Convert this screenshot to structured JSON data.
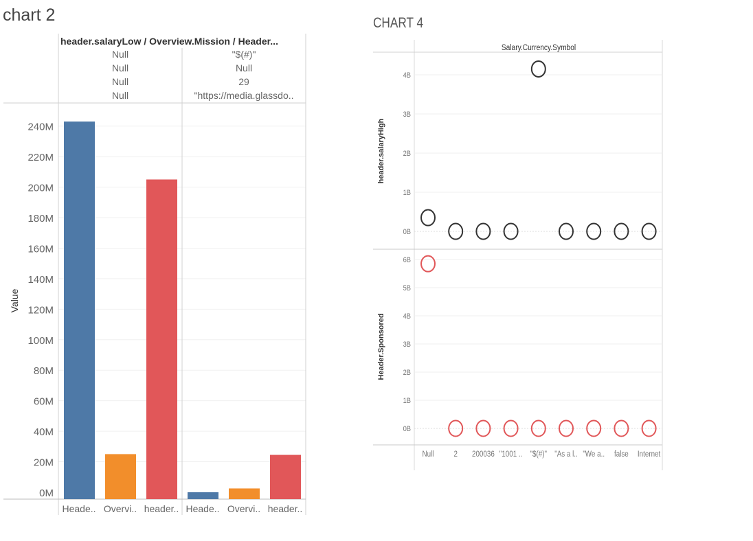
{
  "chart2": {
    "title": "chart 2",
    "header_title": "header.salaryLow / Overview.Mission / Header...",
    "panes": [
      {
        "rows": [
          "Null",
          "Null",
          "Null",
          "Null"
        ]
      },
      {
        "rows": [
          "\"$(#)\"",
          "Null",
          "29",
          "\"https://media.glassdo.."
        ]
      }
    ],
    "ylabel": "Value"
  },
  "chart4": {
    "title": "CHART 4",
    "top_header": "Salary.Currency.Symbol"
  },
  "chart_data": [
    {
      "type": "bar",
      "title": "chart 2",
      "ylabel": "Value",
      "ylim": [
        0,
        250000000
      ],
      "yticks": [
        "0M",
        "20M",
        "40M",
        "60M",
        "80M",
        "100M",
        "120M",
        "140M",
        "160M",
        "180M",
        "200M",
        "220M",
        "240M"
      ],
      "panes": [
        {
          "header": [
            "Null",
            "Null",
            "Null",
            "Null"
          ],
          "categories": [
            "Heade..",
            "Overvi..",
            "header.."
          ],
          "values": [
            243000000,
            25000000,
            205000000
          ],
          "colors": [
            "#4e79a7",
            "#f28e2b",
            "#e15759"
          ]
        },
        {
          "header": [
            "\"$(#)\"",
            "Null",
            "29",
            "\"https://media.glassdo.."
          ],
          "categories": [
            "Heade..",
            "Overvi..",
            "header.."
          ],
          "values": [
            0,
            2500000,
            24500000
          ],
          "colors": [
            "#4e79a7",
            "#f28e2b",
            "#e15759"
          ]
        }
      ],
      "grid": true
    },
    {
      "type": "scatter",
      "title": "CHART 4",
      "column_header": "Salary.Currency.Symbol",
      "categories": [
        "Null",
        "2",
        "200036",
        "\"1001 ..",
        "\"$(#)\"",
        "\"As a l..",
        "\"We a..",
        "false",
        "Internet"
      ],
      "panels": [
        {
          "ylabel": "header.salaryHigh",
          "yticks": [
            "0B",
            "1B",
            "2B",
            "3B",
            "4B"
          ],
          "ylim": [
            0,
            5000000000
          ],
          "color": "#333333",
          "values": [
            350000000,
            0,
            0,
            0,
            4150000000,
            0,
            0,
            0,
            0
          ]
        },
        {
          "ylabel": "Header.Sponsored",
          "yticks": [
            "0B",
            "1B",
            "2B",
            "3B",
            "4B",
            "5B",
            "6B"
          ],
          "ylim": [
            0,
            6300000000
          ],
          "color": "#e15759",
          "values": [
            5850000000,
            0,
            0,
            0,
            0,
            0,
            0,
            0,
            0
          ]
        }
      ],
      "grid": true
    }
  ]
}
